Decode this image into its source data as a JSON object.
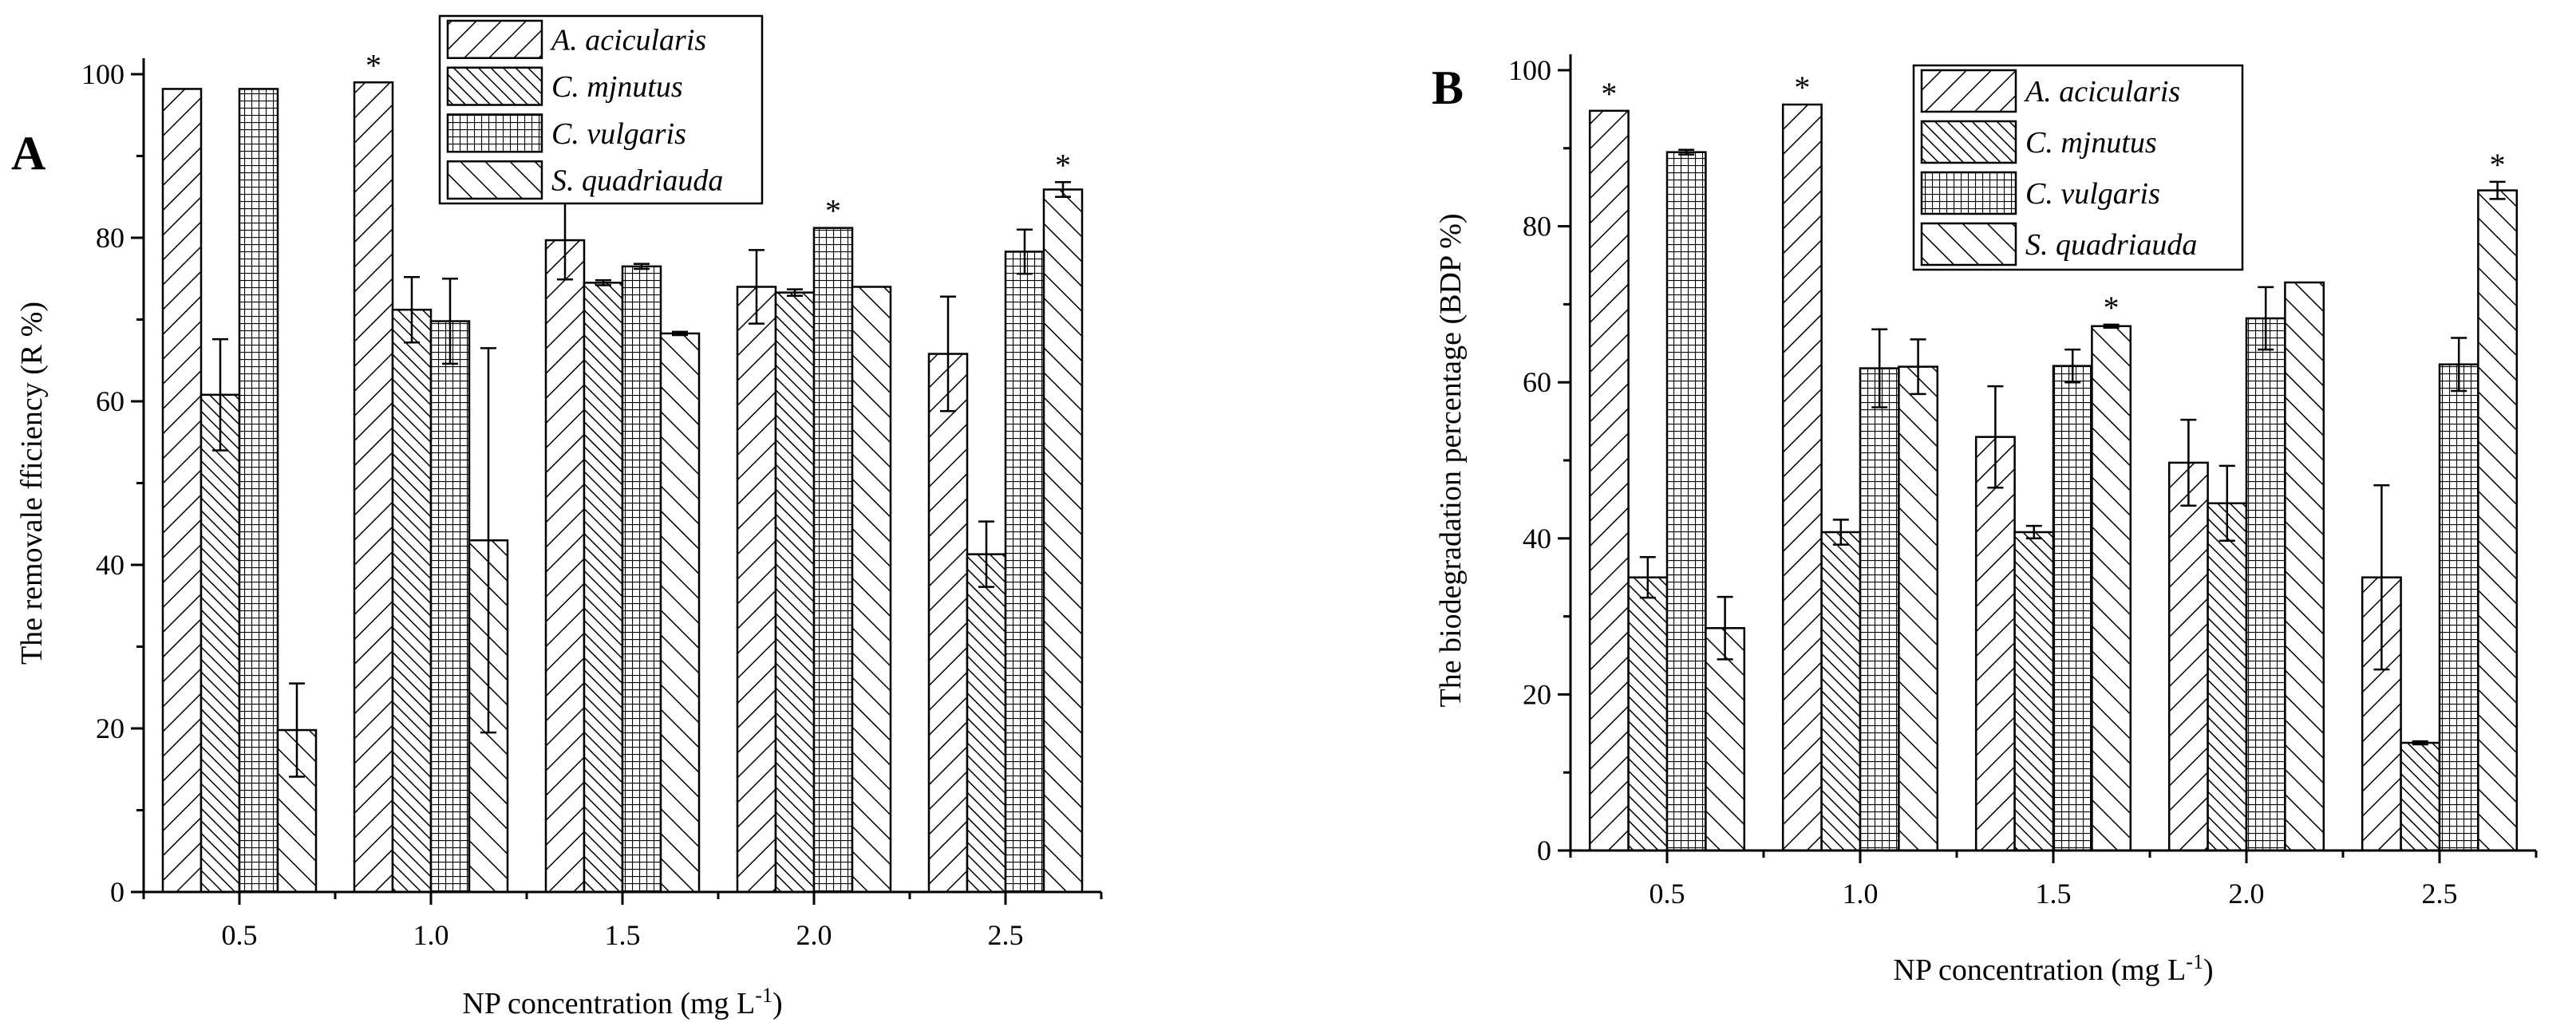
{
  "colors": {
    "ink": "#000000",
    "background": "#ffffff"
  },
  "chart_data": [
    {
      "type": "bar",
      "panel_label": "A",
      "title": "",
      "xlabel": "NP concentration (mg L",
      "xlabel_sup": "-1",
      "xlabel_end": ")",
      "ylabel": "The removale fficiency (R %)",
      "categories": [
        "0.5",
        "1.0",
        "1.5",
        "2.0",
        "2.5"
      ],
      "ylim": [
        0,
        100
      ],
      "yticks": [
        "0",
        "20",
        "40",
        "60",
        "80",
        "100"
      ],
      "legend_position": "top",
      "series": [
        {
          "name": "A. acicularis",
          "pattern": "diag-right",
          "values": [
            98.2,
            99.0,
            79.7,
            74.0,
            65.8
          ],
          "errors": [
            0,
            0,
            4.8,
            4.5,
            7.0
          ],
          "stars": [
            false,
            true,
            false,
            false,
            false
          ]
        },
        {
          "name": "C. mjnutus",
          "pattern": "diag-left",
          "values": [
            60.8,
            71.2,
            74.5,
            73.3,
            41.3
          ],
          "errors": [
            6.8,
            4.0,
            0.3,
            0.4,
            4.0
          ],
          "stars": [
            false,
            false,
            false,
            false,
            false
          ]
        },
        {
          "name": "C. vulgaris",
          "pattern": "grid",
          "values": [
            98.2,
            69.8,
            76.5,
            81.2,
            78.3
          ],
          "errors": [
            0,
            5.2,
            0.3,
            0,
            2.7
          ],
          "stars": [
            false,
            false,
            false,
            true,
            false
          ]
        },
        {
          "name": "S. quadriauda",
          "pattern": "diag-left-wide",
          "values": [
            19.8,
            43.0,
            68.3,
            74.0,
            85.9
          ],
          "errors": [
            5.7,
            23.5,
            0.2,
            0,
            0.9
          ],
          "stars": [
            false,
            false,
            false,
            false,
            true
          ]
        }
      ],
      "annotation": "*"
    },
    {
      "type": "bar",
      "panel_label": "B",
      "title": "",
      "xlabel": "NP concentration (mg L",
      "xlabel_sup": "-1",
      "xlabel_end": ")",
      "ylabel": "The biodegradation percentage (BDP %)",
      "categories": [
        "0.5",
        "1.0",
        "1.5",
        "2.0",
        "2.5"
      ],
      "ylim": [
        0,
        100
      ],
      "yticks": [
        "0",
        "20",
        "40",
        "60",
        "80",
        "100"
      ],
      "legend_position": "top",
      "series": [
        {
          "name": "A. acicularis",
          "pattern": "diag-right",
          "values": [
            94.8,
            95.6,
            53.0,
            49.7,
            35.0
          ],
          "errors": [
            0,
            0,
            6.5,
            5.5,
            11.8
          ],
          "stars": [
            true,
            true,
            false,
            false,
            false
          ]
        },
        {
          "name": "C. mjnutus",
          "pattern": "diag-left",
          "values": [
            35.0,
            40.8,
            40.8,
            44.5,
            13.8
          ],
          "errors": [
            2.6,
            1.6,
            0.8,
            4.8,
            0.2
          ],
          "stars": [
            false,
            false,
            false,
            false,
            false
          ]
        },
        {
          "name": "C. vulgaris",
          "pattern": "grid",
          "values": [
            89.5,
            61.8,
            62.1,
            68.2,
            62.3
          ],
          "errors": [
            0.3,
            5.0,
            2.1,
            4.0,
            3.4
          ],
          "stars": [
            false,
            false,
            false,
            false,
            false
          ]
        },
        {
          "name": "S. quadriauda",
          "pattern": "diag-left-wide",
          "values": [
            28.5,
            62.0,
            67.2,
            72.8,
            84.6
          ],
          "errors": [
            4.0,
            3.5,
            0.2,
            0,
            1.1
          ],
          "stars": [
            false,
            false,
            true,
            false,
            true
          ]
        }
      ],
      "annotation": "*"
    }
  ]
}
